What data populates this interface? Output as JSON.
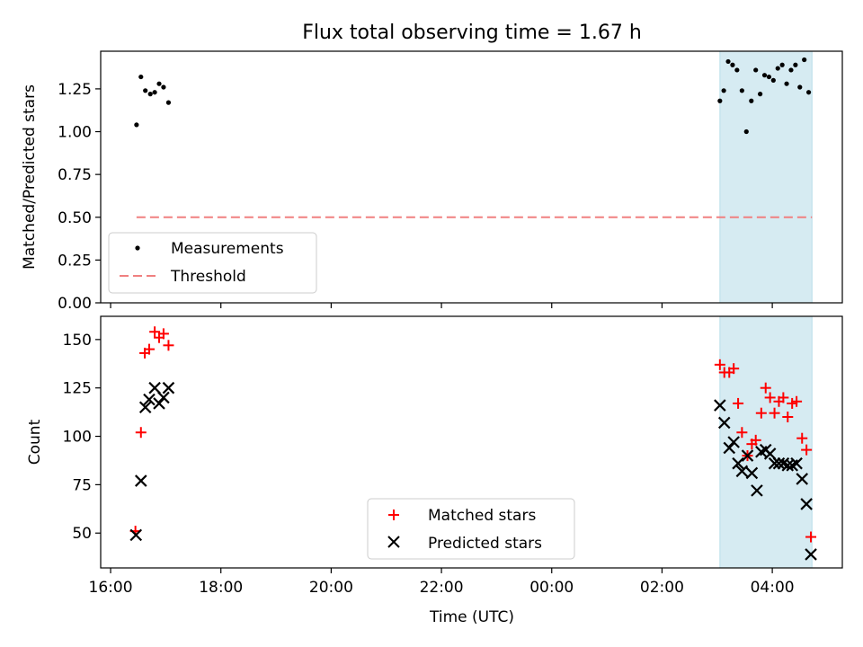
{
  "title": "Flux total observing time = 1.67 h",
  "chart_data": [
    {
      "type": "scatter",
      "panel": "top",
      "ylabel": "Matched/Predicted stars",
      "ylim": [
        0,
        1.47
      ],
      "yticks": [
        0.0,
        0.25,
        0.5,
        0.75,
        1.0,
        1.25
      ],
      "ytick_labels": [
        "0.00",
        "0.25",
        "0.50",
        "0.75",
        "1.00",
        "1.25"
      ],
      "legend": {
        "placement": "lower-left",
        "entries": [
          "Measurements",
          "Threshold"
        ]
      },
      "threshold": {
        "name": "Threshold",
        "value": 0.5,
        "x_range": [
          16.47,
          28.72
        ],
        "color": "#f08080",
        "style": "dashed"
      },
      "series": [
        {
          "name": "Measurements",
          "marker": "dot",
          "color": "#000000",
          "points": [
            [
              16.47,
              1.04
            ],
            [
              16.55,
              1.32
            ],
            [
              16.63,
              1.24
            ],
            [
              16.72,
              1.22
            ],
            [
              16.8,
              1.23
            ],
            [
              16.88,
              1.28
            ],
            [
              16.96,
              1.26
            ],
            [
              17.05,
              1.17
            ],
            [
              27.05,
              1.18
            ],
            [
              27.12,
              1.24
            ],
            [
              27.2,
              1.41
            ],
            [
              27.28,
              1.39
            ],
            [
              27.36,
              1.36
            ],
            [
              27.45,
              1.24
            ],
            [
              27.53,
              1.0
            ],
            [
              27.62,
              1.18
            ],
            [
              27.7,
              1.36
            ],
            [
              27.78,
              1.22
            ],
            [
              27.86,
              1.33
            ],
            [
              27.94,
              1.32
            ],
            [
              28.02,
              1.3
            ],
            [
              28.1,
              1.37
            ],
            [
              28.18,
              1.39
            ],
            [
              28.26,
              1.28
            ],
            [
              28.34,
              1.36
            ],
            [
              28.42,
              1.39
            ],
            [
              28.5,
              1.26
            ],
            [
              28.58,
              1.42
            ],
            [
              28.66,
              1.23
            ]
          ]
        }
      ]
    },
    {
      "type": "scatter",
      "panel": "bottom",
      "ylabel": "Count",
      "xlabel": "Time (UTC)",
      "ylim": [
        32,
        162
      ],
      "yticks": [
        50,
        75,
        100,
        125,
        150
      ],
      "ytick_labels": [
        "50",
        "75",
        "100",
        "125",
        "150"
      ],
      "legend": {
        "placement": "lower-center",
        "entries": [
          "Matched stars",
          "Predicted stars"
        ]
      },
      "series": [
        {
          "name": "Matched stars",
          "marker": "plus",
          "color": "#ff0000",
          "points": [
            [
              16.45,
              51
            ],
            [
              16.55,
              102
            ],
            [
              16.62,
              143
            ],
            [
              16.7,
              145
            ],
            [
              16.8,
              154
            ],
            [
              16.88,
              151
            ],
            [
              16.96,
              153
            ],
            [
              17.05,
              147
            ],
            [
              27.05,
              137
            ],
            [
              27.13,
              133
            ],
            [
              27.22,
              133
            ],
            [
              27.3,
              135
            ],
            [
              27.38,
              117
            ],
            [
              27.45,
              102
            ],
            [
              27.55,
              90
            ],
            [
              27.63,
              96
            ],
            [
              27.7,
              98
            ],
            [
              27.8,
              112
            ],
            [
              27.88,
              125
            ],
            [
              27.96,
              120
            ],
            [
              28.04,
              112
            ],
            [
              28.12,
              118
            ],
            [
              28.2,
              120
            ],
            [
              28.28,
              110
            ],
            [
              28.36,
              117
            ],
            [
              28.44,
              118
            ],
            [
              28.54,
              99
            ],
            [
              28.62,
              93
            ],
            [
              28.7,
              48
            ]
          ]
        },
        {
          "name": "Predicted stars",
          "marker": "x",
          "color": "#000000",
          "points": [
            [
              16.46,
              49
            ],
            [
              16.55,
              77
            ],
            [
              16.63,
              115
            ],
            [
              16.7,
              119
            ],
            [
              16.8,
              125
            ],
            [
              16.88,
              117
            ],
            [
              16.96,
              120
            ],
            [
              17.05,
              125
            ],
            [
              27.05,
              116
            ],
            [
              27.13,
              107
            ],
            [
              27.22,
              94
            ],
            [
              27.3,
              97
            ],
            [
              27.38,
              86
            ],
            [
              27.45,
              82
            ],
            [
              27.55,
              90
            ],
            [
              27.63,
              81
            ],
            [
              27.72,
              72
            ],
            [
              27.8,
              92
            ],
            [
              27.88,
              93
            ],
            [
              27.96,
              91
            ],
            [
              28.04,
              86
            ],
            [
              28.12,
              86
            ],
            [
              28.2,
              86
            ],
            [
              28.28,
              85
            ],
            [
              28.36,
              85
            ],
            [
              28.44,
              86
            ],
            [
              28.54,
              78
            ],
            [
              28.62,
              65
            ],
            [
              28.7,
              39
            ]
          ]
        }
      ]
    }
  ],
  "x_axis": {
    "label": "Time (UTC)",
    "xlim": [
      15.82,
      29.27
    ],
    "ticks": [
      16,
      18,
      20,
      22,
      24,
      26,
      28
    ],
    "tick_labels": [
      "16:00",
      "18:00",
      "20:00",
      "22:00",
      "00:00",
      "02:00",
      "04:00"
    ]
  },
  "highlight_span": {
    "x_range": [
      27.05,
      28.72
    ],
    "color": "#add8e6"
  },
  "colors": {
    "matched": "#ff0000",
    "predicted": "#000000",
    "measurement": "#000000",
    "threshold": "#f08080",
    "span": "#add8e6"
  }
}
